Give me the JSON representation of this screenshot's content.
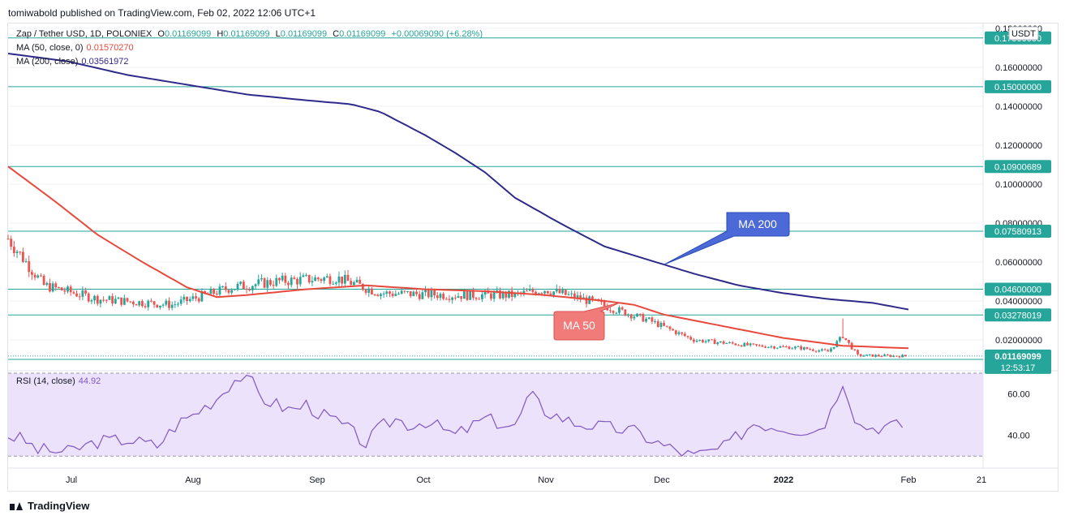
{
  "publisher": "tomiwabold published on TradingView.com, Feb 02, 2022 12:06 UTC+1",
  "footer_brand": "TradingView",
  "legend": {
    "symbol": "Zap / Tether USD, 1D, POLONIEX",
    "o_label": "O",
    "o_val": "0.01169099",
    "h_label": "H",
    "h_val": "0.01169099",
    "l_label": "L",
    "l_val": "0.01169099",
    "c_label": "C",
    "c_val": "0.01169099",
    "change": "+0.00069090 (+6.28%)",
    "ma50_label": "MA (50, close, 0)",
    "ma50_val": "0.01570270",
    "ma200_label": "MA (200, close)",
    "ma200_val": "0.03561972",
    "rsi_label": "RSI (14, close)",
    "rsi_val": "44.92"
  },
  "currency": "USDT",
  "countdown": "12:53:17",
  "colors": {
    "up": "#26a69a",
    "down": "#ef5350",
    "ma50": "#e8493c",
    "ma200": "#2e2a8a",
    "hline": "#26a69a",
    "rsi": "#7e57c2",
    "rsi_band": "#ede2fb"
  },
  "chart_data": [
    {
      "type": "candlestick",
      "title": "Zap / Tether USD, 1D, POLONIEX",
      "ylim": [
        0.005,
        0.182
      ],
      "y_ticks": [
        "0.18000000",
        "0.16000000",
        "0.14000000",
        "0.12000000",
        "0.10000000",
        "0.08000000",
        "0.06000000",
        "0.04000000",
        "0.02000000"
      ],
      "x_ticks": [
        "Jul",
        "Aug",
        "Sep",
        "Oct",
        "Nov",
        "Dec",
        "2022",
        "Feb",
        "21"
      ],
      "horizontal_levels": [
        {
          "label": "0.17500000",
          "value": 0.175
        },
        {
          "label": "0.15000000",
          "value": 0.15
        },
        {
          "label": "0.10900689",
          "value": 0.10900689
        },
        {
          "label": "0.07580913",
          "value": 0.07580913
        },
        {
          "label": "0.04600000",
          "value": 0.046
        },
        {
          "label": "0.03278019",
          "value": 0.03278019
        },
        {
          "label": "0.01000000",
          "value": 0.01
        }
      ],
      "last_price": {
        "label": "0.01169099",
        "value": 0.01169099
      },
      "ma200": [
        [
          0,
          0.167
        ],
        [
          20,
          0.163
        ],
        [
          40,
          0.156
        ],
        [
          60,
          0.151
        ],
        [
          80,
          0.146
        ],
        [
          100,
          0.143
        ],
        [
          115,
          0.141
        ],
        [
          125,
          0.137
        ],
        [
          140,
          0.125
        ],
        [
          150,
          0.116
        ],
        [
          160,
          0.106
        ],
        [
          170,
          0.093
        ],
        [
          185,
          0.08
        ],
        [
          200,
          0.068
        ],
        [
          215,
          0.061
        ],
        [
          230,
          0.054
        ],
        [
          245,
          0.048
        ],
        [
          260,
          0.044
        ],
        [
          275,
          0.041
        ],
        [
          290,
          0.039
        ],
        [
          302,
          0.0356
        ]
      ],
      "ma50": [
        [
          0,
          0.109
        ],
        [
          15,
          0.092
        ],
        [
          30,
          0.074
        ],
        [
          45,
          0.06
        ],
        [
          60,
          0.047
        ],
        [
          70,
          0.042
        ],
        [
          80,
          0.043
        ],
        [
          100,
          0.046
        ],
        [
          120,
          0.048
        ],
        [
          140,
          0.046
        ],
        [
          160,
          0.045
        ],
        [
          180,
          0.043
        ],
        [
          200,
          0.04
        ],
        [
          210,
          0.038
        ],
        [
          220,
          0.033
        ],
        [
          240,
          0.027
        ],
        [
          260,
          0.021
        ],
        [
          280,
          0.017
        ],
        [
          302,
          0.0157
        ]
      ],
      "annotations": [
        {
          "text": "MA 200",
          "target": "ma200",
          "index": 220
        },
        {
          "text": "MA 50",
          "target": "ma50",
          "index": 205
        }
      ]
    },
    {
      "type": "line",
      "title": "RSI (14, close)",
      "ylim": [
        25,
        70
      ],
      "y_ticks": [
        "60.00",
        "40.00"
      ],
      "band": [
        30,
        70
      ],
      "values": [
        [
          0,
          40
        ],
        [
          5,
          38
        ],
        [
          10,
          33
        ],
        [
          20,
          32
        ],
        [
          30,
          37
        ],
        [
          40,
          38
        ],
        [
          50,
          35
        ],
        [
          57,
          46
        ],
        [
          62,
          50
        ],
        [
          70,
          58
        ],
        [
          75,
          66
        ],
        [
          80,
          70
        ],
        [
          85,
          58
        ],
        [
          95,
          52
        ],
        [
          100,
          55
        ],
        [
          105,
          50
        ],
        [
          110,
          47
        ],
        [
          115,
          42
        ],
        [
          120,
          36
        ],
        [
          125,
          44
        ],
        [
          130,
          48
        ],
        [
          135,
          45
        ],
        [
          140,
          47
        ],
        [
          150,
          40
        ],
        [
          160,
          48
        ],
        [
          170,
          44
        ],
        [
          175,
          60
        ],
        [
          180,
          52
        ],
        [
          190,
          46
        ],
        [
          200,
          44
        ],
        [
          210,
          42
        ],
        [
          220,
          35
        ],
        [
          230,
          30
        ],
        [
          240,
          34
        ],
        [
          250,
          46
        ],
        [
          260,
          44
        ],
        [
          270,
          42
        ],
        [
          275,
          48
        ],
        [
          280,
          67
        ],
        [
          285,
          45
        ],
        [
          290,
          44
        ],
        [
          300,
          44.92
        ]
      ]
    }
  ]
}
